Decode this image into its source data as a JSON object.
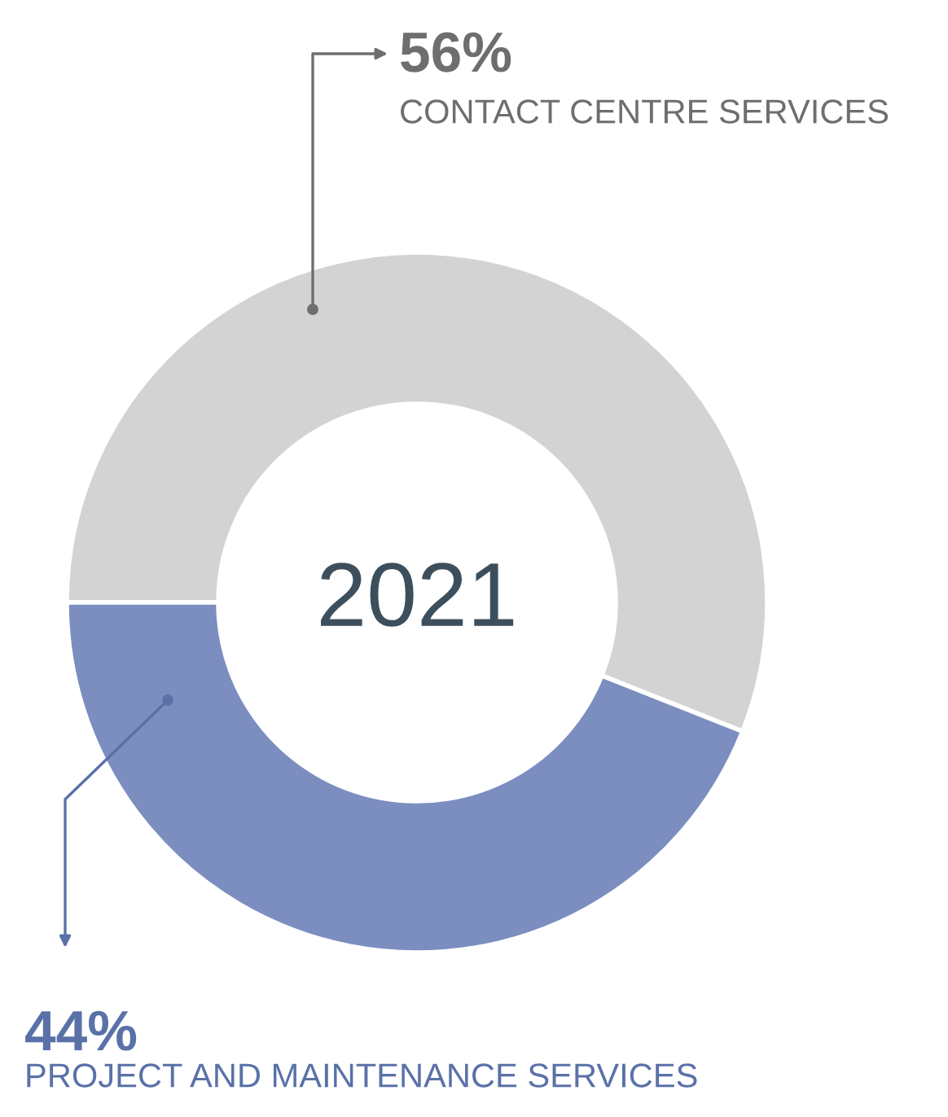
{
  "chart_data": {
    "type": "donut",
    "title": "2021",
    "categories": [
      "CONTACT CENTRE SERVICES",
      "PROJECT AND MAINTENANCE SERVICES"
    ],
    "values": [
      56,
      44
    ],
    "value_labels": [
      "56%",
      "44%"
    ],
    "colors": [
      "#d3d3d3",
      "#7b8ebf"
    ],
    "legend": false
  }
}
